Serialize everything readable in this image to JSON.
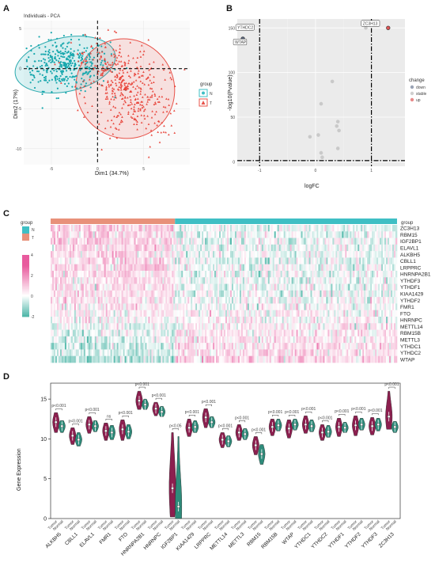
{
  "panels": {
    "a": "A",
    "b": "B",
    "c": "C",
    "d": "D"
  },
  "colors": {
    "normal": "#3fbfc4",
    "tumor": "#e8534a",
    "violin_tumor": "#8c1f4f",
    "violin_normal": "#2e8b7a",
    "heat_high": "#e85b9e",
    "heat_low": "#52b8aa"
  },
  "chart_data": [
    {
      "type": "scatter",
      "title": "Individuals - PCA",
      "xlabel": "Dim1 (34.7%)",
      "ylabel": "Dim2 (17%)",
      "xticks": [
        "-5",
        "0",
        "5"
      ],
      "yticks": [
        "5",
        "0",
        "-5",
        "-10"
      ],
      "xlim": [
        -8,
        10
      ],
      "ylim": [
        -12,
        6
      ],
      "legend": {
        "title": "group",
        "items": [
          "N",
          "T"
        ],
        "position": "right"
      },
      "series": [
        {
          "name": "N",
          "marker": "circle",
          "center": [
            -3.5,
            0.5
          ],
          "spread": [
            2.4,
            1.6
          ]
        },
        {
          "name": "T",
          "marker": "triangle",
          "center": [
            3.0,
            -2.5
          ],
          "spread": [
            2.3,
            3.0
          ]
        }
      ]
    },
    {
      "type": "scatter",
      "xlabel": "logFC",
      "ylabel": "-log10(Pvalue)",
      "xticks": [
        "-1",
        "0",
        "1"
      ],
      "yticks": [
        "0",
        "50",
        "100",
        "150"
      ],
      "xlim": [
        -1.4,
        1.6
      ],
      "ylim": [
        -5,
        160
      ],
      "thresholds": {
        "x": [
          -1,
          1
        ],
        "y": 1.3
      },
      "legend": {
        "title": "change",
        "items": [
          "down",
          "stable",
          "up"
        ],
        "position": "right"
      },
      "labels": [
        "YTHDC2",
        "WTAP",
        "ZC3H13"
      ],
      "points": [
        {
          "x": -1.2,
          "y": 150,
          "change": "down"
        },
        {
          "x": -1.3,
          "y": 138,
          "change": "down"
        },
        {
          "x": 1.3,
          "y": 150,
          "change": "up"
        },
        {
          "x": 0.9,
          "y": 150,
          "change": "stable"
        },
        {
          "x": 0.3,
          "y": 90,
          "change": "stable"
        },
        {
          "x": 0.1,
          "y": 65,
          "change": "stable"
        },
        {
          "x": 0.4,
          "y": 45,
          "change": "stable"
        },
        {
          "x": 0.38,
          "y": 40,
          "change": "stable"
        },
        {
          "x": 0.42,
          "y": 35,
          "change": "stable"
        },
        {
          "x": -0.1,
          "y": 28,
          "change": "stable"
        },
        {
          "x": 0.05,
          "y": 30,
          "change": "stable"
        },
        {
          "x": 0.4,
          "y": 15,
          "change": "stable"
        },
        {
          "x": 0.1,
          "y": 10,
          "change": "stable"
        },
        {
          "x": 0.12,
          "y": 5,
          "change": "stable"
        }
      ]
    },
    {
      "type": "heatmap",
      "group_title": "group",
      "groups": [
        "N",
        "T"
      ],
      "scale_ticks": [
        "4",
        "2",
        "0",
        "-2"
      ],
      "scale_range": [
        -2,
        4
      ],
      "tumor_fraction": 0.36,
      "genes": [
        "ZC3H13",
        "RBM15",
        "IGF2BP1",
        "ELAVL1",
        "ALKBH5",
        "CBLL1",
        "LRPPRC",
        "HNRNPA2B1",
        "YTHDF3",
        "YTHDF1",
        "KIAA1429",
        "YTHDF2",
        "FMR1",
        "FTO",
        "HNRNPC",
        "METTL14",
        "RBM15B",
        "METTL3",
        "YTHDC1",
        "YTHDC2",
        "WTAP"
      ],
      "tumor_mean": [
        0.8,
        0.7,
        0.9,
        0.7,
        0.7,
        0.6,
        0.7,
        0.6,
        0.6,
        0.6,
        0.5,
        0.5,
        0.4,
        0.3,
        0.2,
        -0.1,
        -0.2,
        -0.3,
        -0.4,
        -0.6,
        -0.8
      ],
      "normal_mean": [
        -0.2,
        -0.2,
        -0.1,
        -0.2,
        -0.2,
        -0.2,
        -0.2,
        -0.1,
        -0.1,
        -0.1,
        -0.1,
        -0.1,
        0.0,
        0.1,
        0.2,
        0.3,
        0.4,
        0.4,
        0.5,
        0.6,
        0.7
      ]
    },
    {
      "type": "violin",
      "ylabel": "Gene Expression",
      "ylim": [
        0,
        17
      ],
      "yticks": [
        "0",
        "5",
        "10",
        "15"
      ],
      "group_labels": [
        "Tumor",
        "Normal"
      ],
      "categories": [
        "ALKBH5",
        "CBLL1",
        "ELAVL1",
        "FMR1",
        "FTO",
        "HNRNPA2B1",
        "HNRNPC",
        "IGF2BP1",
        "KIAA1429",
        "LRPPRC",
        "METTL14",
        "METTL3",
        "RBM15",
        "RBM15B",
        "WTAP",
        "YTHDC1",
        "YTHDC2",
        "YTHDF1",
        "YTHDF2",
        "YTHDF3",
        "ZC3H13"
      ],
      "pvalues": [
        "p<0.001",
        "p<0.001",
        "p<0.001",
        "ns",
        "p<0.001",
        "p<0.001",
        "p<0.001",
        "p<0.05",
        "p<0.001",
        "p<0.001",
        "p<0.001",
        "p<0.001",
        "p<0.001",
        "p<0.001",
        "p<0.001",
        "p<0.001",
        "p<0.001",
        "p<0.001",
        "p<0.001",
        "p<0.001",
        "p<0.001"
      ],
      "tumor_median": [
        12.1,
        10.4,
        11.8,
        11.0,
        11.2,
        14.8,
        13.8,
        3.8,
        11.4,
        12.7,
        9.9,
        10.8,
        9.2,
        11.5,
        11.3,
        11.8,
        10.8,
        11.5,
        11.7,
        11.6,
        12.8
      ],
      "normal_median": [
        11.6,
        9.9,
        11.6,
        10.8,
        10.9,
        14.3,
        13.4,
        1.5,
        11.5,
        12.1,
        9.7,
        10.6,
        8.1,
        11.7,
        11.8,
        11.6,
        10.9,
        11.4,
        11.8,
        11.8,
        11.5
      ],
      "tumor_range": [
        [
          10.8,
          13.3
        ],
        [
          9.3,
          11.4
        ],
        [
          10.7,
          12.8
        ],
        [
          9.8,
          12.0
        ],
        [
          9.8,
          12.4
        ],
        [
          13.7,
          16.0
        ],
        [
          12.9,
          14.6
        ],
        [
          0.2,
          10.8
        ],
        [
          10.3,
          12.5
        ],
        [
          11.4,
          13.8
        ],
        [
          8.9,
          10.8
        ],
        [
          9.8,
          11.8
        ],
        [
          8.0,
          10.3
        ],
        [
          10.4,
          12.5
        ],
        [
          10.1,
          12.4
        ],
        [
          10.7,
          12.9
        ],
        [
          9.8,
          11.8
        ],
        [
          10.3,
          12.6
        ],
        [
          10.4,
          12.9
        ],
        [
          10.5,
          12.7
        ],
        [
          11.2,
          16.0
        ]
      ],
      "normal_range": [
        [
          10.8,
          12.3
        ],
        [
          9.1,
          10.8
        ],
        [
          10.9,
          12.3
        ],
        [
          9.9,
          11.7
        ],
        [
          10.0,
          11.8
        ],
        [
          13.7,
          15.0
        ],
        [
          12.8,
          14.1
        ],
        [
          0.0,
          10.3
        ],
        [
          10.8,
          12.3
        ],
        [
          11.4,
          12.8
        ],
        [
          9.0,
          10.4
        ],
        [
          9.9,
          11.3
        ],
        [
          6.8,
          9.3
        ],
        [
          11.0,
          12.5
        ],
        [
          11.1,
          12.5
        ],
        [
          10.9,
          12.4
        ],
        [
          10.2,
          11.7
        ],
        [
          10.8,
          12.1
        ],
        [
          11.1,
          12.6
        ],
        [
          11.0,
          12.6
        ],
        [
          10.8,
          12.2
        ]
      ]
    }
  ]
}
